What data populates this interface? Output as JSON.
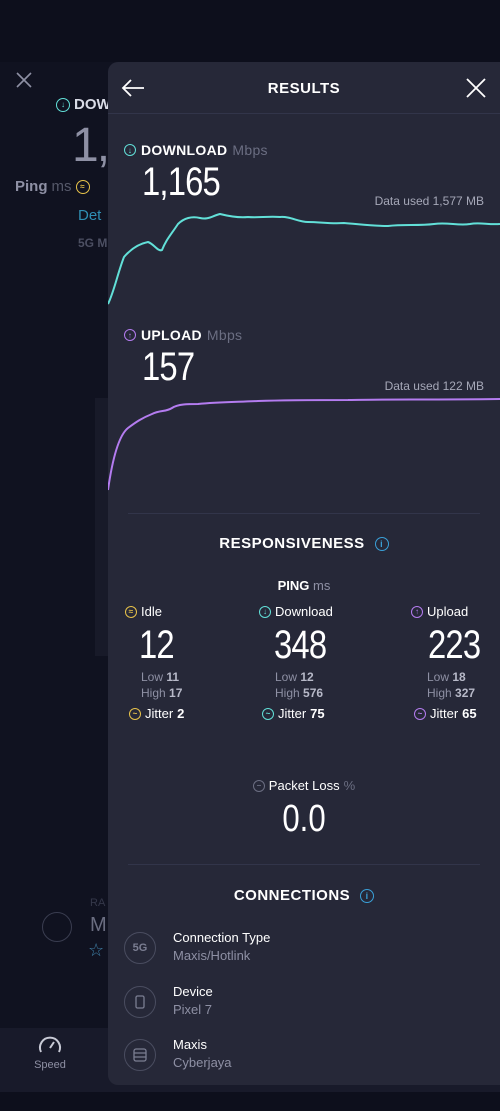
{
  "background": {
    "download_label": "DOW",
    "download_value": "1,",
    "ping_label": "Ping",
    "ping_unit": "ms",
    "details_link": "Det",
    "net_badge": "5G M",
    "ra_label": "RA",
    "provider_initial": "M",
    "nav_speed_label": "Speed"
  },
  "header": {
    "title": "RESULTS"
  },
  "download": {
    "label": "DOWNLOAD",
    "unit": "Mbps",
    "value": "1,165",
    "data_used": "Data used 1,577 MB",
    "color": "#62e0d8"
  },
  "upload": {
    "label": "UPLOAD",
    "unit": "Mbps",
    "value": "157",
    "data_used": "Data used 122 MB",
    "color": "#b47cf0"
  },
  "responsiveness": {
    "title": "RESPONSIVENESS",
    "ping_label": "PING",
    "ping_unit": "ms",
    "idle": {
      "label": "Idle",
      "value": "12",
      "low_label": "Low",
      "low": "11",
      "high_label": "High",
      "high": "17",
      "jitter_label": "Jitter",
      "jitter": "2",
      "color": "#e8c34a"
    },
    "download": {
      "label": "Download",
      "value": "348",
      "low_label": "Low",
      "low": "12",
      "high_label": "High",
      "high": "576",
      "jitter_label": "Jitter",
      "jitter": "75",
      "color": "#62e0d8"
    },
    "upload": {
      "label": "Upload",
      "value": "223",
      "low_label": "Low",
      "low": "18",
      "high_label": "High",
      "high": "327",
      "jitter_label": "Jitter",
      "jitter": "65",
      "color": "#b47cf0"
    },
    "packet_loss_label": "Packet Loss",
    "packet_loss_unit": "%",
    "packet_loss": "0.0"
  },
  "connections": {
    "title": "CONNECTIONS",
    "items": [
      {
        "icon": "5g-icon",
        "icon_text": "5G",
        "title": "Connection Type",
        "subtitle": "Maxis/Hotlink"
      },
      {
        "icon": "phone-icon",
        "title": "Device",
        "subtitle": "Pixel 7"
      },
      {
        "icon": "server-icon",
        "title": "Maxis",
        "subtitle": "Cyberjaya"
      }
    ]
  }
}
